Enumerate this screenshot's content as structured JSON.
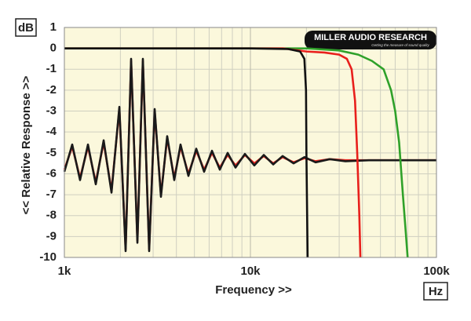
{
  "chart_data": {
    "type": "line",
    "x_unit": "Hz",
    "y_unit": "dB",
    "xlabel": "Frequency >>",
    "ylabel": "<< Relative Response >>",
    "logo": "MILLER AUDIO RESEARCH",
    "logo_tagline": "Getting the measure of sound quality",
    "xscale": "log",
    "grid": true,
    "background": "#fbf8dc",
    "xlim": [
      1000,
      100000
    ],
    "ylim": [
      -10,
      1
    ],
    "xticks": [
      {
        "value": 1000,
        "label": "1k"
      },
      {
        "value": 10000,
        "label": "10k"
      },
      {
        "value": 100000,
        "label": "100k"
      }
    ],
    "x_minor_grid": [
      2000,
      3000,
      4000,
      5000,
      6000,
      7000,
      8000,
      9000,
      20000,
      30000,
      40000,
      50000,
      60000,
      70000,
      80000,
      90000
    ],
    "yticks": [
      1,
      0,
      -1,
      -2,
      -3,
      -4,
      -5,
      -6,
      -7,
      -8,
      -9,
      -10
    ],
    "series": [
      {
        "color": "#e8201c",
        "x": [
          1000,
          1102,
          1214,
          1339,
          1475,
          1626,
          1792,
          1975,
          2134,
          2284,
          2469,
          2642,
          2856,
          3057,
          3304,
          3570,
          3896,
          4211,
          4642,
          5116,
          5638,
          6213,
          6847,
          7546,
          8315,
          9343,
          10498,
          11797,
          13260,
          14894,
          17067,
          19550,
          22400,
          26690,
          32400,
          43370,
          100000
        ],
        "values": [
          -5.8,
          -4.7,
          -6.2,
          -4.7,
          -6.4,
          -4.5,
          -6.8,
          -2.9,
          -9.6,
          -0.6,
          -9.2,
          -0.6,
          -9.6,
          -3.0,
          -7.0,
          -4.3,
          -6.2,
          -4.7,
          -6.0,
          -4.9,
          -5.8,
          -5.0,
          -5.7,
          -5.1,
          -5.6,
          -5.1,
          -5.5,
          -5.15,
          -5.5,
          -5.2,
          -5.45,
          -5.25,
          -5.4,
          -5.3,
          -5.35,
          -5.35,
          -5.35
        ]
      },
      {
        "color": "#1a1a1a",
        "x": [
          1000,
          1102,
          1214,
          1339,
          1475,
          1626,
          1792,
          1975,
          2134,
          2284,
          2469,
          2642,
          2856,
          3057,
          3304,
          3570,
          3896,
          4211,
          4642,
          5116,
          5638,
          6213,
          6847,
          7546,
          8315,
          9343,
          10498,
          11797,
          13260,
          14894,
          17067,
          19550,
          22400,
          26690,
          32400,
          43370,
          100000
        ],
        "values": [
          -5.9,
          -4.6,
          -6.3,
          -4.6,
          -6.5,
          -4.4,
          -6.9,
          -2.8,
          -9.7,
          -0.5,
          -9.3,
          -0.5,
          -9.7,
          -2.9,
          -7.1,
          -4.2,
          -6.3,
          -4.6,
          -6.1,
          -4.8,
          -5.9,
          -4.9,
          -5.8,
          -5.0,
          -5.7,
          -5.05,
          -5.6,
          -5.1,
          -5.55,
          -5.15,
          -5.5,
          -5.2,
          -5.45,
          -5.3,
          -5.4,
          -5.35,
          -5.35
        ]
      },
      {
        "color": "#2fa12a",
        "x": [
          1000,
          20000,
          30000,
          38000,
          45000,
          52000,
          57000,
          60000,
          63000,
          66000,
          68000,
          70000
        ],
        "values": [
          0,
          0,
          -0.1,
          -0.3,
          -0.6,
          -1,
          -2,
          -3,
          -4.5,
          -7,
          -8.5,
          -10
        ]
      },
      {
        "color": "#e8201c",
        "x": [
          1000,
          15000,
          20000,
          25000,
          30000,
          33000,
          35000,
          36500,
          37500,
          38500,
          39000
        ],
        "values": [
          0,
          0,
          -0.15,
          -0.2,
          -0.3,
          -0.5,
          -1,
          -2.5,
          -5,
          -8,
          -10
        ]
      },
      {
        "color": "#111111",
        "x": [
          1000,
          10000,
          16000,
          18500,
          19500,
          19900,
          20000,
          20300
        ],
        "values": [
          0,
          0,
          -0.03,
          -0.15,
          -0.5,
          -2,
          -5,
          -10
        ]
      }
    ]
  }
}
